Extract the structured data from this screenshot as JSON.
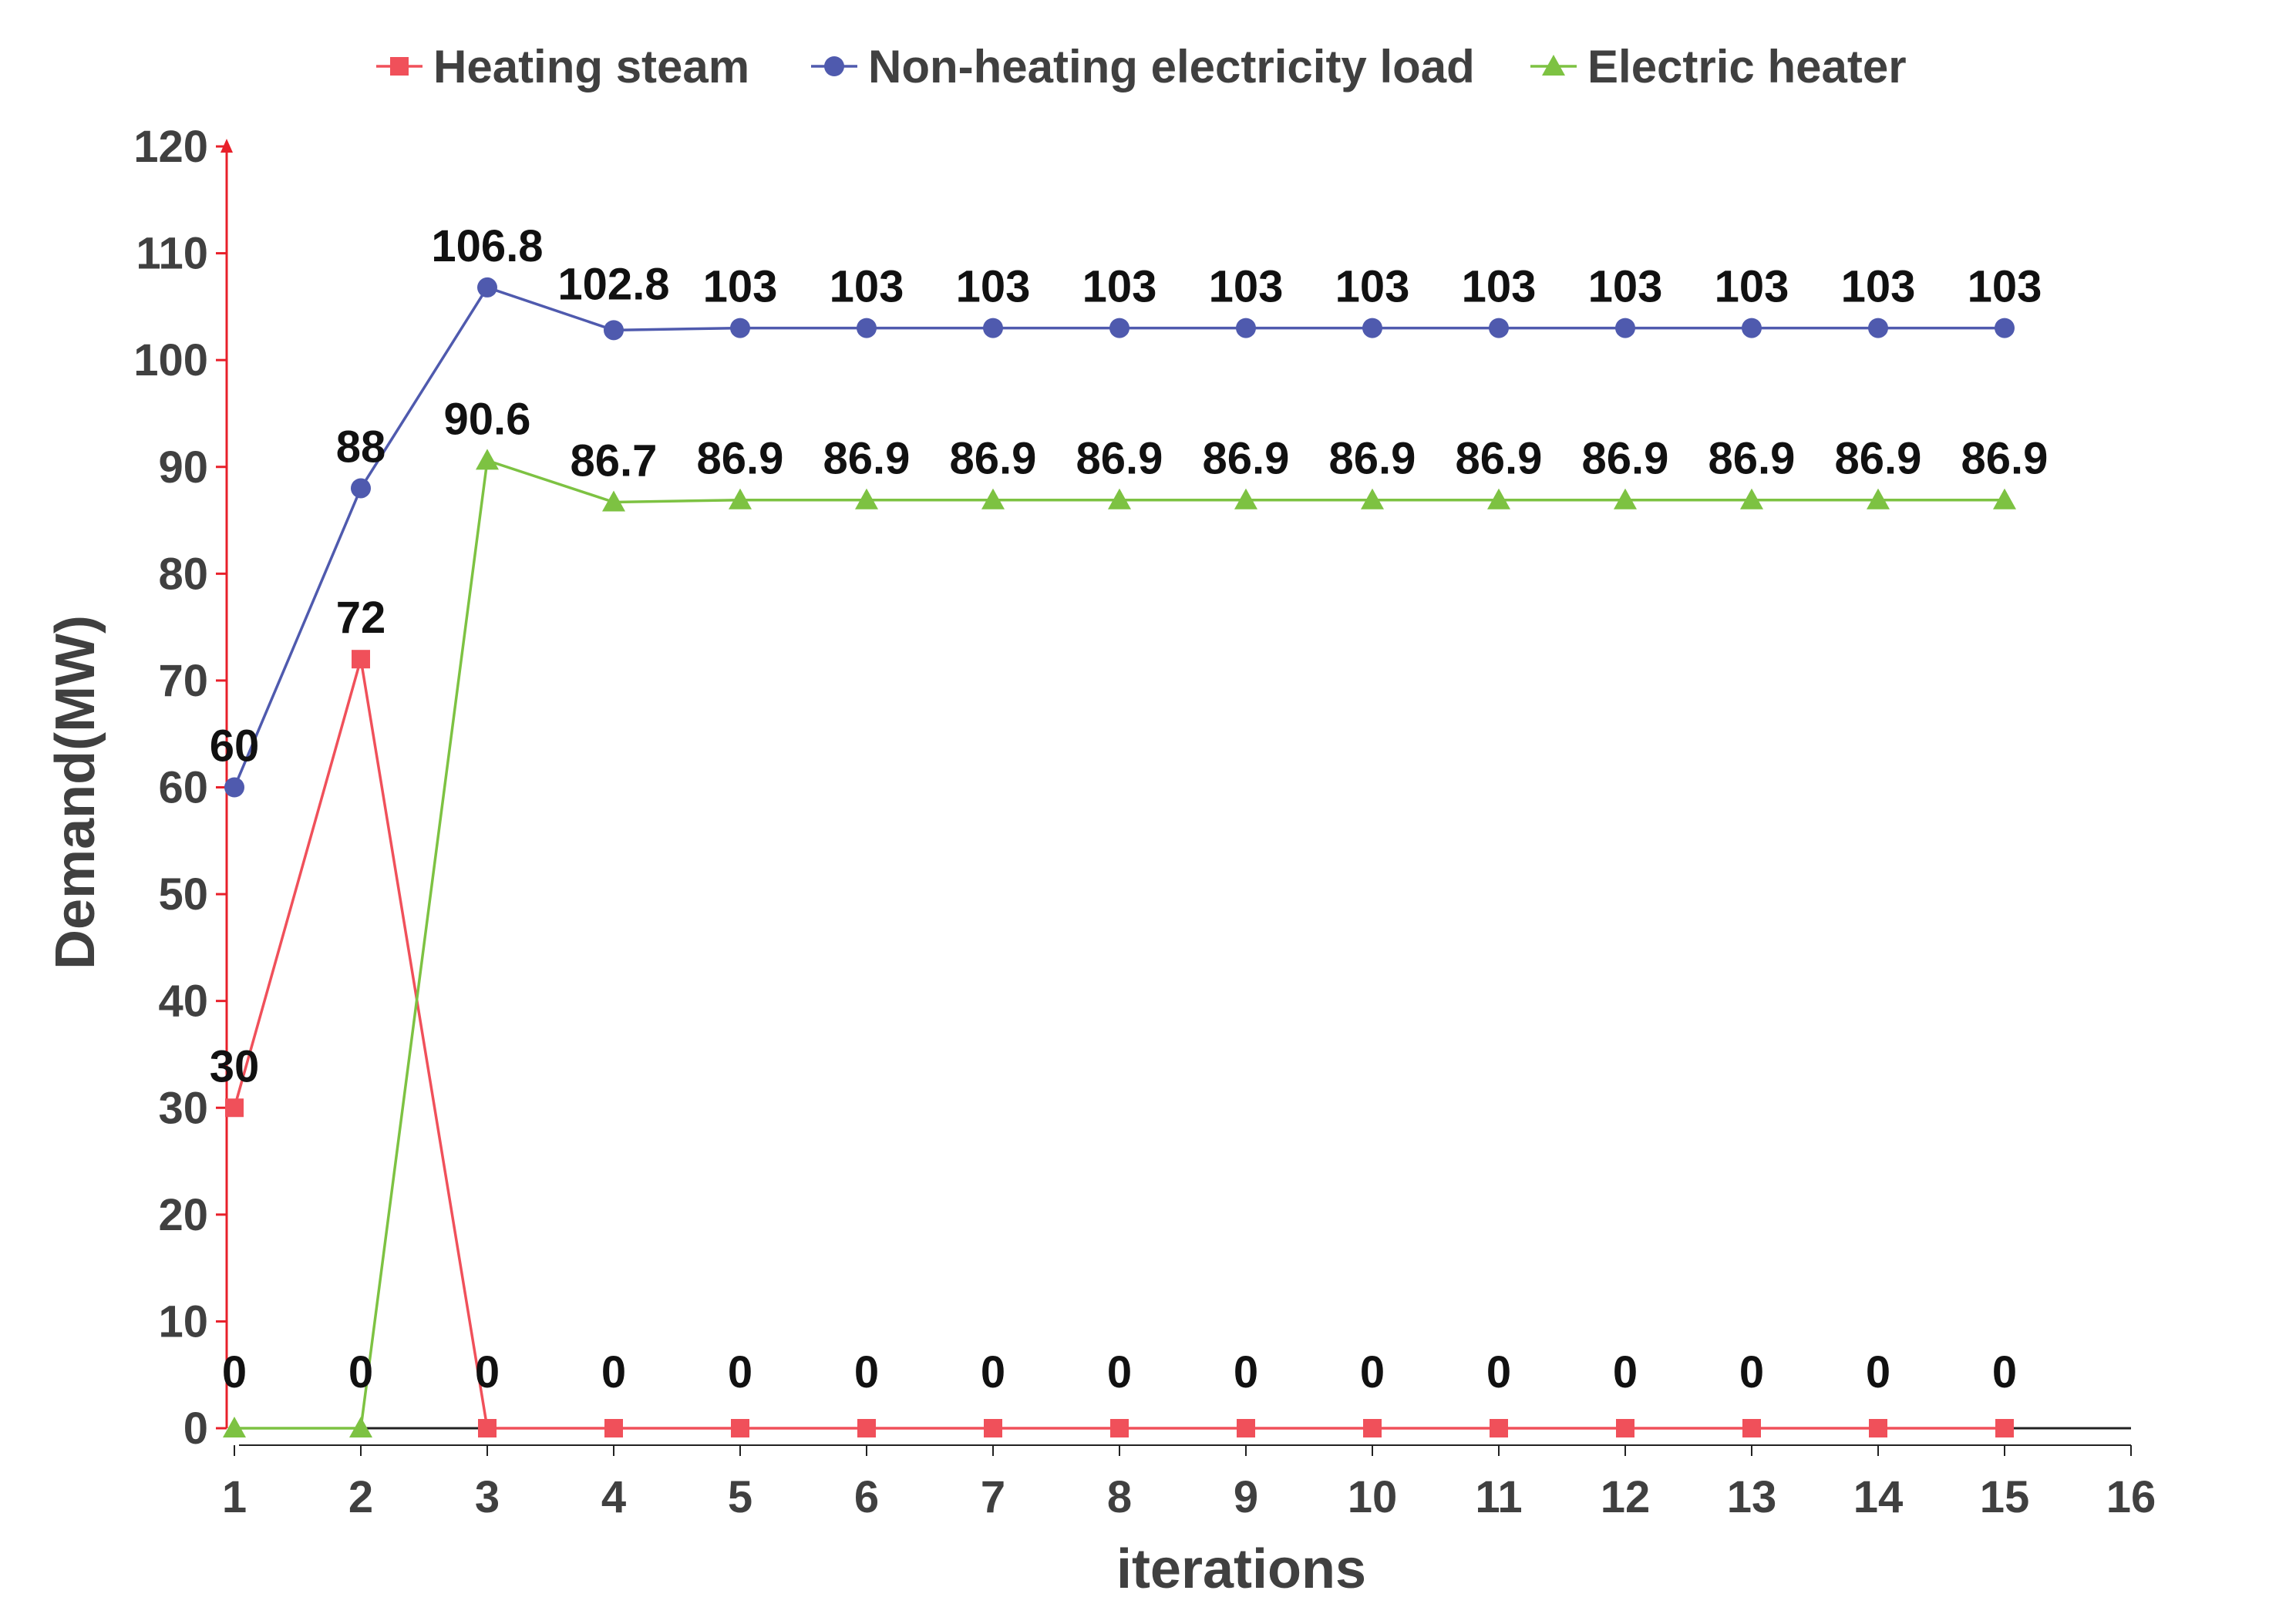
{
  "chart_data": {
    "type": "line",
    "xlabel": "iterations",
    "ylabel": "Demand(MW)",
    "xlim": [
      0,
      16
    ],
    "ylim": [
      0,
      120
    ],
    "x_ticks": [
      1,
      2,
      3,
      4,
      5,
      6,
      7,
      8,
      9,
      10,
      11,
      12,
      13,
      14,
      15,
      16
    ],
    "y_ticks": [
      0,
      10,
      20,
      30,
      40,
      50,
      60,
      70,
      80,
      90,
      100,
      110,
      120
    ],
    "grid": false,
    "legend_position": "top",
    "x": [
      1,
      2,
      3,
      4,
      5,
      6,
      7,
      8,
      9,
      10,
      11,
      12,
      13,
      14,
      15
    ],
    "series": [
      {
        "name": "Heating steam",
        "color": "#F0505A",
        "marker": "square",
        "values": [
          30,
          72,
          0,
          0,
          0,
          0,
          0,
          0,
          0,
          0,
          0,
          0,
          0,
          0,
          0
        ],
        "labels": [
          "30",
          "72",
          "0",
          "0",
          "0",
          "0",
          "0",
          "0",
          "0",
          "0",
          "0",
          "0",
          "0",
          "0",
          "0"
        ]
      },
      {
        "name": "Non-heating electricity load",
        "color": "#4F5AAE",
        "marker": "circle",
        "values": [
          60,
          88,
          106.8,
          102.8,
          103,
          103,
          103,
          103,
          103,
          103,
          103,
          103,
          103,
          103,
          103
        ],
        "labels": [
          "60",
          "88",
          "106.8",
          "102.8",
          "103",
          "103",
          "103",
          "103",
          "103",
          "103",
          "103",
          "103",
          "103",
          "103",
          "103"
        ]
      },
      {
        "name": "Electric heater",
        "color": "#7DC242",
        "marker": "triangle",
        "values": [
          0,
          0,
          90.6,
          86.7,
          86.9,
          86.9,
          86.9,
          86.9,
          86.9,
          86.9,
          86.9,
          86.9,
          86.9,
          86.9,
          86.9
        ],
        "labels": [
          "0",
          "0",
          "90.6",
          "86.7",
          "86.9",
          "86.9",
          "86.9",
          "86.9",
          "86.9",
          "86.9",
          "86.9",
          "86.9",
          "86.9",
          "86.9",
          "86.9"
        ]
      }
    ],
    "axis_color": "#E8202A"
  }
}
